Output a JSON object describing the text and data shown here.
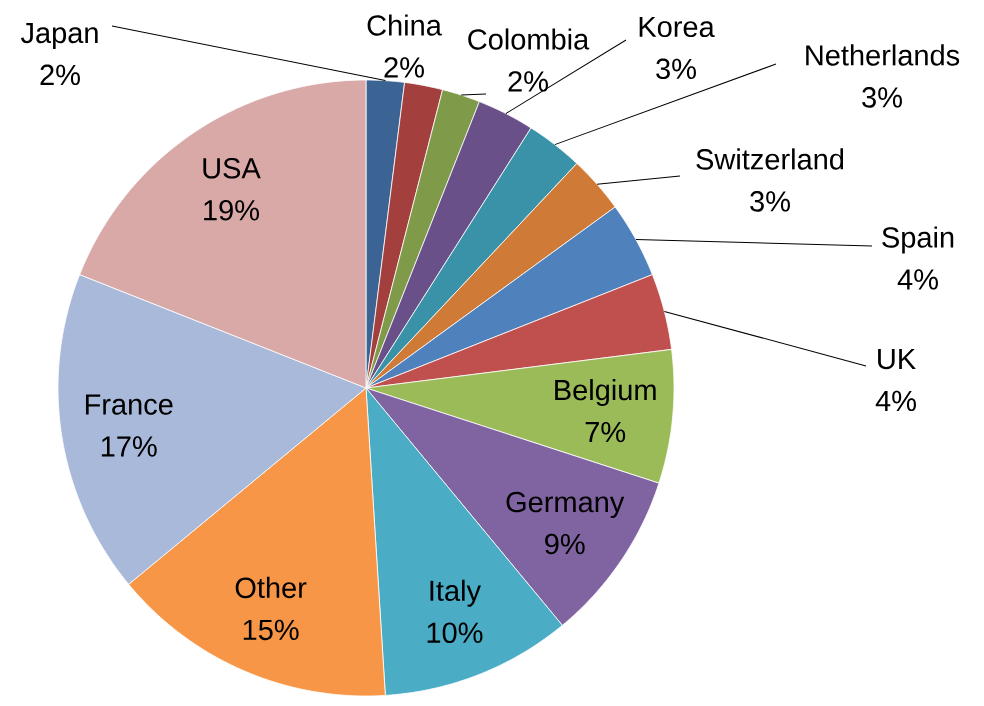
{
  "chart_data": {
    "type": "pie",
    "categories": [
      "Japan",
      "China",
      "Colombia",
      "Korea",
      "Netherlands",
      "Switzerland",
      "Spain",
      "UK",
      "Belgium",
      "Germany",
      "Italy",
      "Other",
      "France",
      "USA"
    ],
    "values": [
      2,
      2,
      2,
      3,
      3,
      3,
      4,
      4,
      7,
      9,
      10,
      15,
      17,
      19
    ],
    "colors": [
      "#3b6495",
      "#a33f3c",
      "#7f9a48",
      "#6a5088",
      "#3a92a8",
      "#cf7a36",
      "#4f81bd",
      "#c0504d",
      "#9bbb59",
      "#8064a2",
      "#4bacc6",
      "#f79646",
      "#a9b9d9",
      "#d9a9a8"
    ],
    "value_labels": [
      "2%",
      "2%",
      "2%",
      "3%",
      "3%",
      "3%",
      "4%",
      "4%",
      "7%",
      "9%",
      "10%",
      "15%",
      "17%",
      "19%"
    ]
  }
}
